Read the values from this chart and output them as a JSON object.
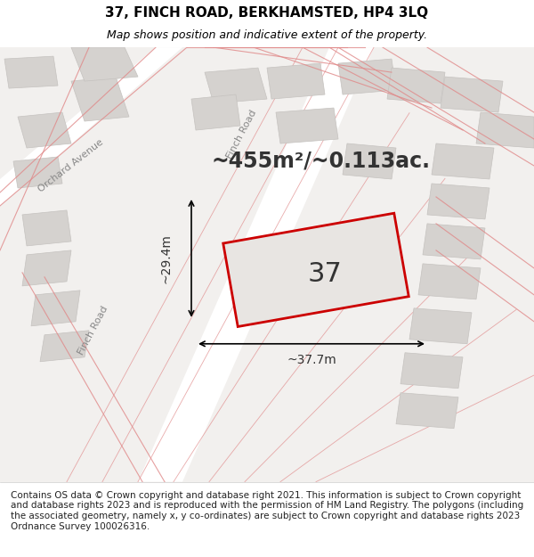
{
  "title": "37, FINCH ROAD, BERKHAMSTED, HP4 3LQ",
  "subtitle": "Map shows position and indicative extent of the property.",
  "area_text": "~455m²/~0.113ac.",
  "number_label": "37",
  "dim_width": "~37.7m",
  "dim_height": "~29.4m",
  "footer": "Contains OS data © Crown copyright and database right 2021. This information is subject to Crown copyright and database rights 2023 and is reproduced with the permission of HM Land Registry. The polygons (including the associated geometry, namely x, y co-ordinates) are subject to Crown copyright and database rights 2023 Ordnance Survey 100026316.",
  "bg_color": "#f0eeec",
  "map_bg": "#f5f3f1",
  "road_color": "#ffffff",
  "building_fill": "#d8d4d0",
  "building_edge": "#c8c4c0",
  "plot_fill": "#e8e4e0",
  "highlight_fill": "none",
  "highlight_edge": "#cc0000",
  "pink_line": "#e88080",
  "footer_bg": "#ffffff",
  "title_fontsize": 11,
  "subtitle_fontsize": 9,
  "area_fontsize": 17,
  "number_fontsize": 22,
  "dim_fontsize": 10,
  "footer_fontsize": 7.5
}
